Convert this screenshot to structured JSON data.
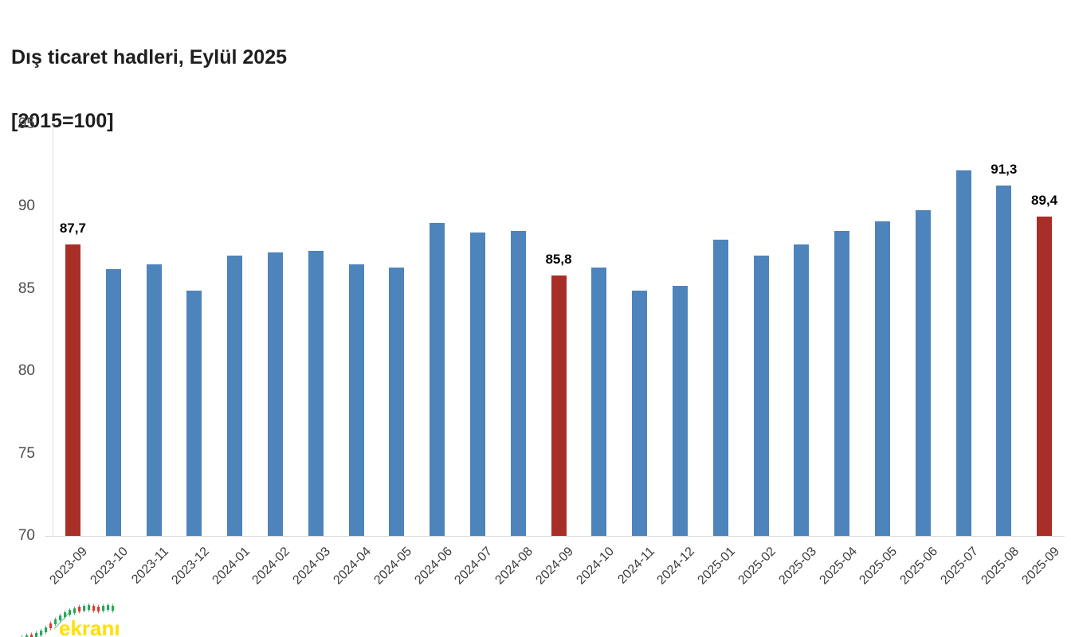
{
  "header": {
    "title_line1": "Dış ticaret hadleri, Eylül 2025",
    "title_line2": "[2015=100]"
  },
  "watermark": {
    "text": "ekranı",
    "text_color": "#ffe000",
    "up_color": "#27a75c",
    "down_color": "#e03a31"
  },
  "chart_data": {
    "type": "bar",
    "title": "Dış ticaret hadleri, Eylül 2025",
    "subtitle": "[2015=100]",
    "categories": [
      "2023-09",
      "2023-10",
      "2023-11",
      "2023-12",
      "2024-01",
      "2024-02",
      "2024-03",
      "2024-04",
      "2024-05",
      "2024-06",
      "2024-07",
      "2024-08",
      "2024-09",
      "2024-10",
      "2024-11",
      "2024-12",
      "2025-01",
      "2025-02",
      "2025-03",
      "2025-04",
      "2025-05",
      "2025-06",
      "2025-07",
      "2025-08",
      "2025-09"
    ],
    "values": [
      87.7,
      86.2,
      86.5,
      84.9,
      87.0,
      87.2,
      87.3,
      86.5,
      86.3,
      89.0,
      88.4,
      88.5,
      85.8,
      86.3,
      84.9,
      85.2,
      88.0,
      87.0,
      87.7,
      88.5,
      89.1,
      89.8,
      92.2,
      91.3,
      89.4
    ],
    "data_labels": {
      "0": "87,7",
      "12": "85,8",
      "23": "91,3",
      "24": "89,4"
    },
    "bar_color": "#4e84bc",
    "highlight_color": "#a72f28",
    "highlighted_indices": [
      0,
      12,
      24
    ],
    "ylim": [
      70,
      95
    ],
    "yticks": [
      70,
      75,
      80,
      85,
      90,
      95
    ],
    "grid": false,
    "legend": null,
    "xlabel": "",
    "ylabel": ""
  }
}
